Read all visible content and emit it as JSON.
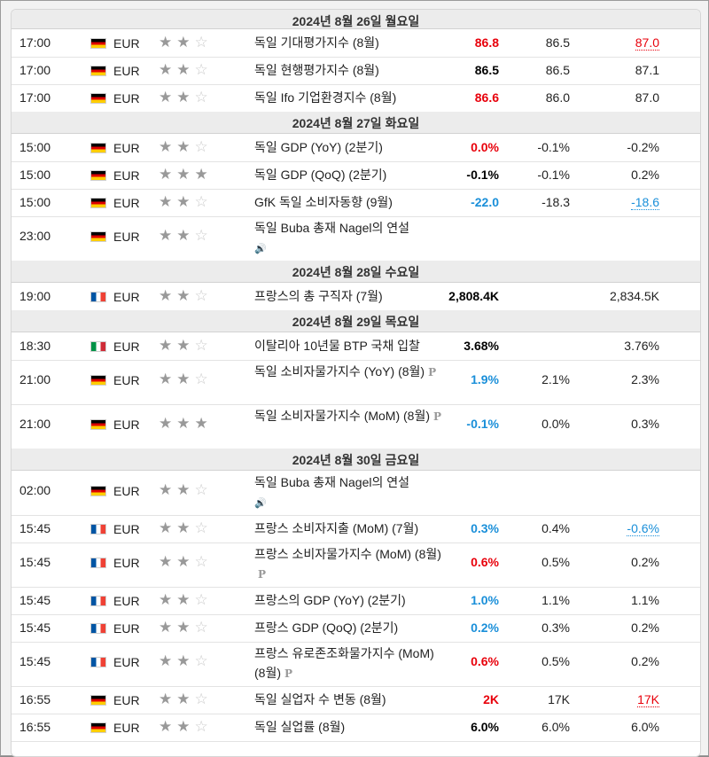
{
  "rows": [
    {
      "kind": "day",
      "label": "2024년 8월 26일 월요일"
    },
    {
      "kind": "event",
      "time": "17:00",
      "flag": "de",
      "currency": "EUR",
      "importance": 2,
      "event": "독일 기대평가지수 (8월)",
      "actual": "86.8",
      "actual_color": "red",
      "forecast": "86.5",
      "previous": "87.0",
      "previous_color": "red",
      "previous_revised": true
    },
    {
      "kind": "event",
      "time": "17:00",
      "flag": "de",
      "currency": "EUR",
      "importance": 2,
      "event": "독일 현행평가지수 (8월)",
      "actual": "86.5",
      "actual_color": "black",
      "forecast": "86.5",
      "previous": "87.1"
    },
    {
      "kind": "event",
      "time": "17:00",
      "flag": "de",
      "currency": "EUR",
      "importance": 2,
      "event": "독일 Ifo 기업환경지수 (8월)",
      "actual": "86.6",
      "actual_color": "red",
      "forecast": "86.0",
      "previous": "87.0"
    },
    {
      "kind": "day",
      "label": "2024년 8월 27일 화요일"
    },
    {
      "kind": "event",
      "time": "15:00",
      "flag": "de",
      "currency": "EUR",
      "importance": 2,
      "event": "독일 GDP (YoY) (2분기)",
      "actual": "0.0%",
      "actual_color": "red",
      "forecast": "-0.1%",
      "previous": "-0.2%"
    },
    {
      "kind": "event",
      "time": "15:00",
      "flag": "de",
      "currency": "EUR",
      "importance": 3,
      "event": "독일 GDP (QoQ) (2분기)",
      "actual": "-0.1%",
      "actual_color": "black",
      "forecast": "-0.1%",
      "previous": "0.2%"
    },
    {
      "kind": "event",
      "time": "15:00",
      "flag": "de",
      "currency": "EUR",
      "importance": 2,
      "event": "GfK 독일 소비자동향 (9월)",
      "actual": "-22.0",
      "actual_color": "blue",
      "forecast": "-18.3",
      "previous": "-18.6",
      "previous_color": "blue",
      "previous_revised": true
    },
    {
      "kind": "event",
      "time": "23:00",
      "flag": "de",
      "currency": "EUR",
      "importance": 2,
      "event": "독일 Buba 총재 Nagel의 연설",
      "speech": true,
      "actual": "",
      "forecast": "",
      "previous": ""
    },
    {
      "kind": "day",
      "label": "2024년 8월 28일 수요일"
    },
    {
      "kind": "event",
      "time": "19:00",
      "flag": "fr",
      "currency": "EUR",
      "importance": 2,
      "event": "프랑스의 총 구직자 (7월)",
      "actual": "2,808.4K",
      "actual_color": "black",
      "forecast": "",
      "previous": "2,834.5K"
    },
    {
      "kind": "day",
      "label": "2024년 8월 29일 목요일"
    },
    {
      "kind": "event",
      "time": "18:30",
      "flag": "it",
      "currency": "EUR",
      "importance": 2,
      "event": "이탈리아 10년물 BTP 국채 입찰",
      "actual": "3.68%",
      "actual_color": "black",
      "forecast": "",
      "previous": "3.76%"
    },
    {
      "kind": "event",
      "time": "21:00",
      "flag": "de",
      "currency": "EUR",
      "importance": 2,
      "event": "독일 소비자물가지수 (YoY) (8월)",
      "prelim": true,
      "actual": "1.9%",
      "actual_color": "blue",
      "forecast": "2.1%",
      "previous": "2.3%"
    },
    {
      "kind": "event",
      "time": "21:00",
      "flag": "de",
      "currency": "EUR",
      "importance": 3,
      "event": "독일 소비자물가지수 (MoM) (8월)",
      "prelim": true,
      "actual": "-0.1%",
      "actual_color": "blue",
      "forecast": "0.0%",
      "previous": "0.3%"
    },
    {
      "kind": "day",
      "label": "2024년 8월 30일 금요일"
    },
    {
      "kind": "event",
      "time": "02:00",
      "flag": "de",
      "currency": "EUR",
      "importance": 2,
      "event": "독일 Buba 총재 Nagel의 연설",
      "speech": true,
      "actual": "",
      "forecast": "",
      "previous": ""
    },
    {
      "kind": "event",
      "time": "15:45",
      "flag": "fr",
      "currency": "EUR",
      "importance": 2,
      "event": "프랑스 소비자지출 (MoM) (7월)",
      "actual": "0.3%",
      "actual_color": "blue",
      "forecast": "0.4%",
      "previous": "-0.6%",
      "previous_color": "blue",
      "previous_revised": true
    },
    {
      "kind": "event",
      "time": "15:45",
      "flag": "fr",
      "currency": "EUR",
      "importance": 2,
      "event": "프랑스 소비자물가지수 (MoM) (8월)",
      "prelim": true,
      "actual": "0.6%",
      "actual_color": "red",
      "forecast": "0.5%",
      "previous": "0.2%"
    },
    {
      "kind": "event",
      "time": "15:45",
      "flag": "fr",
      "currency": "EUR",
      "importance": 2,
      "event": "프랑스의 GDP (YoY) (2분기)",
      "actual": "1.0%",
      "actual_color": "blue",
      "forecast": "1.1%",
      "previous": "1.1%"
    },
    {
      "kind": "event",
      "time": "15:45",
      "flag": "fr",
      "currency": "EUR",
      "importance": 2,
      "event": "프랑스 GDP (QoQ) (2분기)",
      "actual": "0.2%",
      "actual_color": "blue",
      "forecast": "0.3%",
      "previous": "0.2%"
    },
    {
      "kind": "event",
      "time": "15:45",
      "flag": "fr",
      "currency": "EUR",
      "importance": 2,
      "event": "프랑스 유로존조화물가지수 (MoM) (8월)",
      "prelim": true,
      "actual": "0.6%",
      "actual_color": "red",
      "forecast": "0.5%",
      "previous": "0.2%"
    },
    {
      "kind": "event",
      "time": "16:55",
      "flag": "de",
      "currency": "EUR",
      "importance": 2,
      "event": "독일 실업자 수 변동 (8월)",
      "actual": "2K",
      "actual_color": "red",
      "forecast": "17K",
      "previous": "17K",
      "previous_color": "red",
      "previous_revised": true
    },
    {
      "kind": "event",
      "time": "16:55",
      "flag": "de",
      "currency": "EUR",
      "importance": 2,
      "event": "독일 실업률 (8월)",
      "actual": "6.0%",
      "actual_color": "black",
      "forecast": "6.0%",
      "previous": "6.0%"
    }
  ],
  "icons": {
    "star": "star-icon",
    "speech": "speaker-icon",
    "prelim": "preliminary-icon"
  },
  "colors": {
    "red": "#e8000b",
    "blue": "#1a8fd9",
    "black": "#000000",
    "day_header_bg": "#ececec"
  }
}
